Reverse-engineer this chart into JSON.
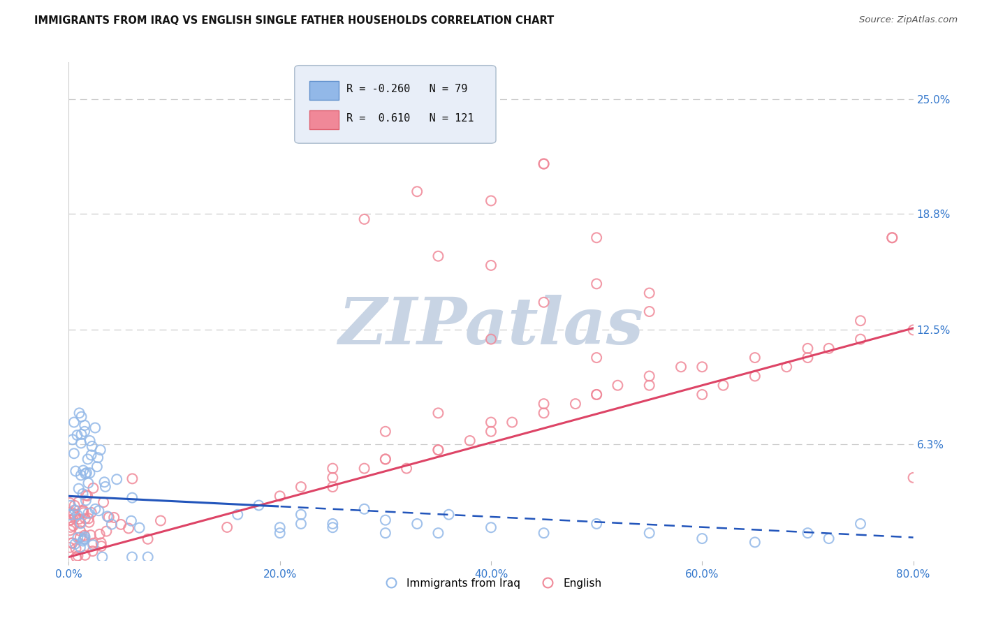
{
  "title": "IMMIGRANTS FROM IRAQ VS ENGLISH SINGLE FATHER HOUSEHOLDS CORRELATION CHART",
  "source": "Source: ZipAtlas.com",
  "xlabel_ticks": [
    "0.0%",
    "20.0%",
    "40.0%",
    "60.0%",
    "80.0%"
  ],
  "xlabel_vals": [
    0.0,
    20.0,
    40.0,
    60.0,
    80.0
  ],
  "ylabel_ticks": [
    "6.3%",
    "12.5%",
    "18.8%",
    "25.0%"
  ],
  "ylabel_vals": [
    6.3,
    12.5,
    18.8,
    25.0
  ],
  "xmin": 0.0,
  "xmax": 80.0,
  "ymin": 0.0,
  "ymax": 27.0,
  "blue_label": "Immigrants from Iraq",
  "pink_label": "English",
  "blue_R": -0.26,
  "blue_N": 79,
  "pink_R": 0.61,
  "pink_N": 121,
  "blue_color": "#92b8e8",
  "pink_color": "#f08898",
  "blue_edge_color": "#6090cc",
  "pink_edge_color": "#e06070",
  "blue_line_color": "#2255bb",
  "pink_line_color": "#dd4466",
  "watermark": "ZIPatlas",
  "watermark_color": "#c8d4e4",
  "legend_box_color": "#e8eef8",
  "legend_border_color": "#aabbcc",
  "blue_line_intercept": 3.5,
  "blue_line_slope": -0.028,
  "pink_line_intercept": 0.2,
  "pink_line_slope": 0.155,
  "blue_solid_end": 20.0,
  "grid_color": "#cccccc"
}
